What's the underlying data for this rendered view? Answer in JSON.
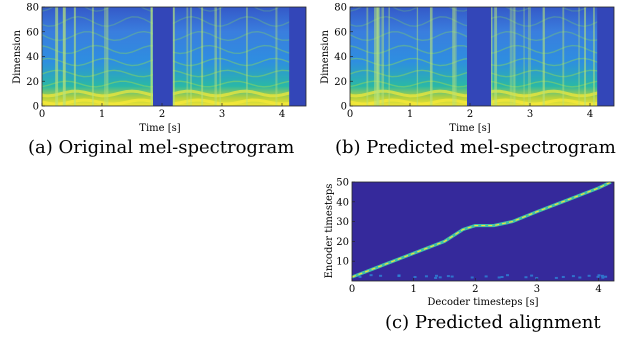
{
  "captions": {
    "a": "(a) Original mel-spectrogram",
    "b": "(b) Predicted mel-spectrogram",
    "c": "(c) Predicted alignment"
  },
  "chart_data": [
    {
      "type": "heatmap",
      "title": "",
      "xlabel": "Time [s]",
      "ylabel": "Dimension",
      "xlim": [
        0,
        4.4
      ],
      "ylim": [
        0,
        80
      ],
      "x_ticks": [
        0,
        1,
        2,
        3,
        4
      ],
      "y_ticks": [
        0,
        20,
        40,
        60,
        80
      ],
      "colormap": "parula",
      "silence_intervals": [
        [
          1.85,
          2.18
        ],
        [
          4.12,
          4.4
        ]
      ]
    },
    {
      "type": "heatmap",
      "title": "",
      "xlabel": "Time [s]",
      "ylabel": "Dimension",
      "xlim": [
        0,
        4.4
      ],
      "ylim": [
        0,
        80
      ],
      "x_ticks": [
        0,
        1,
        2,
        3,
        4
      ],
      "y_ticks": [
        0,
        20,
        40,
        60,
        80
      ],
      "colormap": "parula",
      "silence_intervals": [
        [
          1.95,
          2.35
        ],
        [
          4.12,
          4.4
        ]
      ]
    },
    {
      "type": "heatmap",
      "title": "",
      "xlabel": "Decoder timesteps [s]",
      "ylabel": "Encoder timesteps",
      "xlim": [
        0,
        4.25
      ],
      "ylim": [
        0,
        50
      ],
      "x_ticks": [
        0,
        1,
        2,
        3,
        4
      ],
      "y_ticks": [
        10,
        20,
        30,
        40,
        50
      ],
      "colormap": "parula",
      "alignment_path": {
        "x": [
          0,
          0.5,
          1.0,
          1.5,
          1.8,
          2.0,
          2.3,
          2.6,
          3.0,
          3.5,
          4.0,
          4.2
        ],
        "y": [
          2,
          8,
          14,
          20,
          26,
          28,
          28,
          30,
          35,
          41,
          47,
          50
        ]
      }
    }
  ]
}
